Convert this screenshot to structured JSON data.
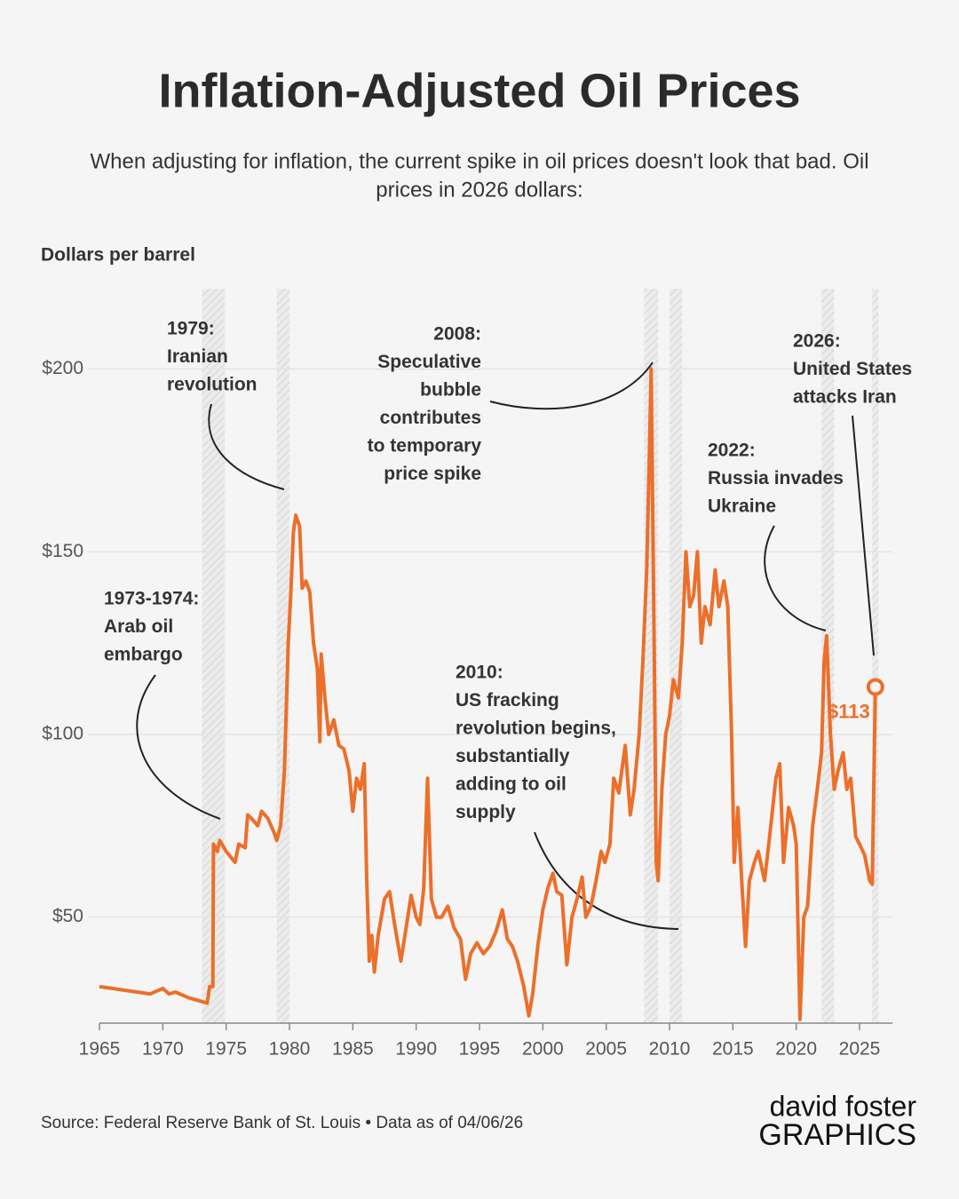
{
  "chart_data": {
    "type": "line",
    "title": "Inflation-Adjusted Oil Prices",
    "subtitle": [
      "When adjusting for inflation, the current spike in oil prices doesn't look that bad. Oil",
      "prices in 2026 dollars:"
    ],
    "y_label": "Dollars per barrel",
    "source": "Source: Federal Reserve Bank of St. Louis • Data as of 04/06/26",
    "logo": [
      "david foster",
      "GRAPHICS"
    ],
    "xlim": [
      1965,
      2027.6
    ],
    "ylim": [
      21,
      222
    ],
    "xticks": [
      1965,
      1970,
      1975,
      1980,
      1985,
      1990,
      1995,
      2000,
      2005,
      2010,
      2015,
      2020,
      2025
    ],
    "yticks": [
      {
        "value": 50,
        "label": "$50"
      },
      {
        "value": 100,
        "label": "$100"
      },
      {
        "value": 150,
        "label": "$150"
      },
      {
        "value": 200,
        "label": "$200"
      }
    ],
    "grid": true,
    "shaded_periods": [
      [
        1973.1,
        1974.9
      ],
      [
        1979.0,
        1980.0
      ],
      [
        2008.0,
        2009.1
      ],
      [
        2010.0,
        2011.0
      ],
      [
        2022.0,
        2023.0
      ],
      [
        2026.0,
        2026.5
      ]
    ],
    "x": [
      1965,
      1966,
      1967,
      1968,
      1969,
      1970,
      1970.5,
      1971,
      1972,
      1973,
      1973.5,
      1973.7,
      1973.95,
      1974,
      1974.3,
      1974.5,
      1975,
      1975.7,
      1976,
      1976.5,
      1976.7,
      1977,
      1977.5,
      1977.8,
      1978.3,
      1978.8,
      1979,
      1979.3,
      1979.6,
      1979.9,
      1980.1,
      1980.3,
      1980.5,
      1980.8,
      1981,
      1981.3,
      1981.6,
      1981.9,
      1982.2,
      1982.4,
      1982.5,
      1982.8,
      1983.1,
      1983.5,
      1983.9,
      1984.3,
      1984.7,
      1985,
      1985.3,
      1985.6,
      1985.9,
      1986.1,
      1986.3,
      1986.5,
      1986.7,
      1987,
      1987.5,
      1987.9,
      1988.3,
      1988.8,
      1989.2,
      1989.6,
      1990,
      1990.3,
      1990.6,
      1990.9,
      1991.2,
      1991.6,
      1992,
      1992.5,
      1993,
      1993.5,
      1993.9,
      1994.3,
      1994.8,
      1995.3,
      1995.8,
      1996.3,
      1996.8,
      1997.2,
      1997.6,
      1998,
      1998.5,
      1998.9,
      1999.2,
      1999.6,
      2000,
      2000.4,
      2000.8,
      2001.1,
      2001.5,
      2001.9,
      2002.3,
      2002.7,
      2003.1,
      2003.4,
      2003.8,
      2004.2,
      2004.6,
      2004.9,
      2005.3,
      2005.6,
      2006,
      2006.5,
      2006.9,
      2007.2,
      2007.6,
      2007.9,
      2008.2,
      2008.4,
      2008.55,
      2008.8,
      2008.95,
      2009.1,
      2009.4,
      2009.7,
      2010,
      2010.3,
      2010.7,
      2011,
      2011.3,
      2011.6,
      2011.9,
      2012.2,
      2012.5,
      2012.8,
      2013.2,
      2013.6,
      2013.9,
      2014.3,
      2014.6,
      2014.9,
      2015.1,
      2015.4,
      2015.7,
      2016,
      2016.3,
      2016.7,
      2017,
      2017.5,
      2017.9,
      2018.4,
      2018.7,
      2019,
      2019.4,
      2019.8,
      2020,
      2020.3,
      2020.6,
      2020.9,
      2021.3,
      2021.7,
      2022,
      2022.2,
      2022.4,
      2022.7,
      2023,
      2023.3,
      2023.7,
      2024,
      2024.3,
      2024.7,
      2025,
      2025.4,
      2025.8,
      2026,
      2026.25
    ],
    "series": [
      {
        "name": "Oil price",
        "color": "#ec6f2a",
        "values": [
          31,
          30.5,
          30,
          29.5,
          29,
          30.5,
          29,
          29.5,
          28,
          27,
          26.5,
          31,
          31,
          70,
          68,
          71,
          68,
          65,
          70,
          69,
          78,
          77,
          75,
          79,
          77,
          73,
          71,
          75,
          90,
          125,
          138,
          155,
          160,
          157,
          140,
          142,
          139,
          125,
          118,
          98,
          122,
          110,
          100,
          104,
          97,
          96,
          90,
          79,
          88,
          85,
          92,
          60,
          38,
          45,
          35,
          45,
          55,
          57,
          48,
          38,
          47,
          56,
          50,
          48,
          58,
          88,
          55,
          50,
          50,
          53,
          47,
          44,
          33,
          40,
          43,
          40,
          42,
          46,
          52,
          44,
          42,
          38,
          31,
          23,
          29,
          42,
          52,
          58,
          62,
          57,
          56,
          37,
          50,
          55,
          61,
          50,
          53,
          60,
          68,
          65,
          70,
          88,
          84,
          97,
          78,
          85,
          100,
          120,
          145,
          175,
          200,
          120,
          65,
          60,
          85,
          100,
          105,
          115,
          110,
          125,
          150,
          135,
          138,
          150,
          125,
          135,
          130,
          145,
          135,
          142,
          135,
          100,
          65,
          80,
          60,
          42,
          60,
          65,
          68,
          60,
          72,
          88,
          92,
          65,
          80,
          75,
          70,
          22,
          50,
          53,
          75,
          86,
          95,
          120,
          127,
          100,
          85,
          90,
          95,
          85,
          88,
          72,
          70,
          67,
          60,
          59,
          113
        ]
      }
    ],
    "highlight": {
      "x": 2026.25,
      "value": 113,
      "label": "$113"
    },
    "annotations": [
      [
        "1973-1974:",
        "Arab oil",
        "embargo"
      ],
      [
        "1979:",
        "Iranian",
        "revolution"
      ],
      [
        "2008:",
        "Speculative",
        "bubble",
        "contributes",
        "to temporary",
        "price spike"
      ],
      [
        "2010:",
        "US fracking",
        "revolution begins,",
        "substantially",
        "adding to oil",
        "supply"
      ],
      [
        "2022:",
        "Russia invades",
        "Ukraine"
      ],
      [
        "2026:",
        "United States",
        "attacks Iran"
      ]
    ]
  }
}
